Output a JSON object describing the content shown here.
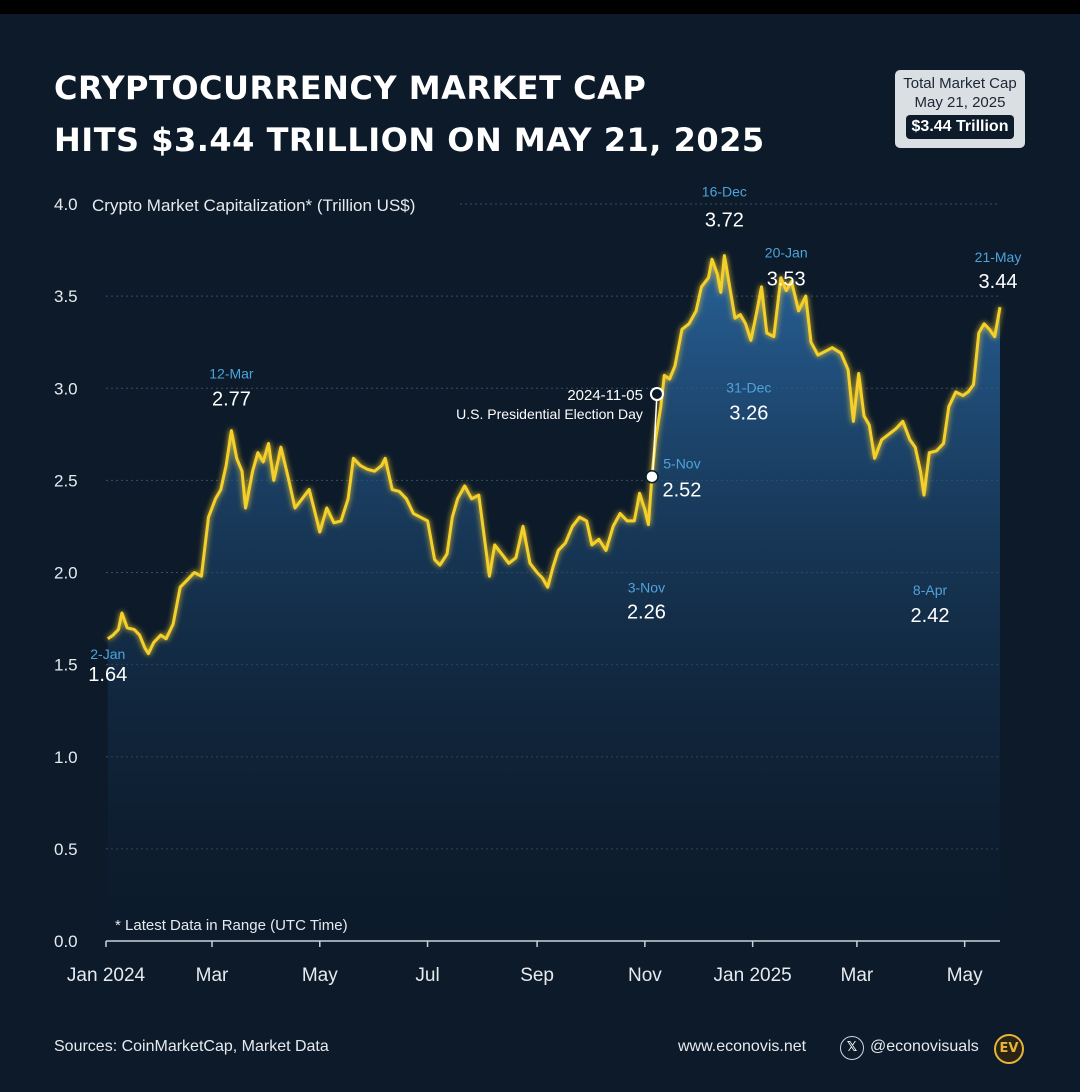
{
  "title": {
    "line1": "CRYPTOCURRENCY MARKET CAP",
    "line2": "HITS $3.44 TRILLION ON MAY 21, 2025"
  },
  "badge": {
    "line1": "Total Market Cap",
    "line2": "May 21, 2025",
    "value": "$3.44 Trillion"
  },
  "footnote": "* Latest Data in Range (UTC Time)",
  "footer": {
    "sources": "Sources: CoinMarketCap, Market Data",
    "website": "www.econovis.net",
    "x_icon": "x-logo-icon",
    "social": "@econovisuals",
    "logo_text": "EV"
  },
  "colors": {
    "background": "#0c1a2a",
    "line": "#f5d02a",
    "date_label": "#4ea3da",
    "grid": "#3a4f63"
  },
  "chart_data": {
    "type": "area",
    "title": "Crypto Market Capitalization* (Trillion US$)",
    "ylabel": "Crypto Market Capitalization* (Trillion US$)",
    "ylim": [
      0,
      4
    ],
    "y_ticks": [
      0.0,
      0.5,
      1.0,
      1.5,
      2.0,
      2.5,
      3.0,
      3.5,
      4.0
    ],
    "y_tick_labels": [
      "0.0",
      "0.5",
      "1.0",
      "1.5",
      "2.0",
      "2.5",
      "3.0",
      "3.5",
      "4.0"
    ],
    "x_ticks": [
      "2024-01-01",
      "2024-03-01",
      "2024-05-01",
      "2024-07-01",
      "2024-09-01",
      "2024-11-01",
      "2025-01-01",
      "2025-03-01",
      "2025-05-01"
    ],
    "x_tick_labels": [
      "Jan 2024",
      "Mar",
      "May",
      "Jul",
      "Sep",
      "Nov",
      "Jan 2025",
      "Mar",
      "May"
    ],
    "xlim": [
      "2024-01-01",
      "2025-05-21"
    ],
    "grid": true,
    "series": [
      {
        "points": [
          [
            "2024-01-02",
            1.64
          ],
          [
            "2024-01-05",
            1.66
          ],
          [
            "2024-01-08",
            1.69
          ],
          [
            "2024-01-10",
            1.78
          ],
          [
            "2024-01-13",
            1.7
          ],
          [
            "2024-01-17",
            1.69
          ],
          [
            "2024-01-20",
            1.66
          ],
          [
            "2024-01-23",
            1.59
          ],
          [
            "2024-01-25",
            1.56
          ],
          [
            "2024-01-28",
            1.62
          ],
          [
            "2024-02-01",
            1.66
          ],
          [
            "2024-02-04",
            1.64
          ],
          [
            "2024-02-08",
            1.72
          ],
          [
            "2024-02-12",
            1.92
          ],
          [
            "2024-02-16",
            1.96
          ],
          [
            "2024-02-20",
            2.0
          ],
          [
            "2024-02-24",
            1.98
          ],
          [
            "2024-02-28",
            2.3
          ],
          [
            "2024-03-03",
            2.4
          ],
          [
            "2024-03-06",
            2.45
          ],
          [
            "2024-03-09",
            2.58
          ],
          [
            "2024-03-12",
            2.77
          ],
          [
            "2024-03-15",
            2.62
          ],
          [
            "2024-03-18",
            2.55
          ],
          [
            "2024-03-20",
            2.35
          ],
          [
            "2024-03-24",
            2.55
          ],
          [
            "2024-03-27",
            2.65
          ],
          [
            "2024-03-30",
            2.6
          ],
          [
            "2024-04-02",
            2.7
          ],
          [
            "2024-04-05",
            2.5
          ],
          [
            "2024-04-09",
            2.68
          ],
          [
            "2024-04-13",
            2.52
          ],
          [
            "2024-04-17",
            2.35
          ],
          [
            "2024-04-21",
            2.4
          ],
          [
            "2024-04-25",
            2.45
          ],
          [
            "2024-04-29",
            2.3
          ],
          [
            "2024-05-01",
            2.22
          ],
          [
            "2024-05-05",
            2.35
          ],
          [
            "2024-05-09",
            2.27
          ],
          [
            "2024-05-13",
            2.28
          ],
          [
            "2024-05-17",
            2.4
          ],
          [
            "2024-05-20",
            2.62
          ],
          [
            "2024-05-24",
            2.58
          ],
          [
            "2024-05-28",
            2.56
          ],
          [
            "2024-06-01",
            2.55
          ],
          [
            "2024-06-05",
            2.58
          ],
          [
            "2024-06-07",
            2.62
          ],
          [
            "2024-06-11",
            2.45
          ],
          [
            "2024-06-15",
            2.44
          ],
          [
            "2024-06-19",
            2.4
          ],
          [
            "2024-06-23",
            2.32
          ],
          [
            "2024-06-27",
            2.3
          ],
          [
            "2024-07-01",
            2.28
          ],
          [
            "2024-07-05",
            2.07
          ],
          [
            "2024-07-08",
            2.04
          ],
          [
            "2024-07-12",
            2.1
          ],
          [
            "2024-07-15",
            2.3
          ],
          [
            "2024-07-18",
            2.4
          ],
          [
            "2024-07-22",
            2.47
          ],
          [
            "2024-07-26",
            2.4
          ],
          [
            "2024-07-30",
            2.42
          ],
          [
            "2024-08-02",
            2.2
          ],
          [
            "2024-08-05",
            1.98
          ],
          [
            "2024-08-08",
            2.15
          ],
          [
            "2024-08-12",
            2.1
          ],
          [
            "2024-08-16",
            2.05
          ],
          [
            "2024-08-20",
            2.08
          ],
          [
            "2024-08-24",
            2.25
          ],
          [
            "2024-08-28",
            2.05
          ],
          [
            "2024-09-01",
            2.0
          ],
          [
            "2024-09-04",
            1.97
          ],
          [
            "2024-09-07",
            1.92
          ],
          [
            "2024-09-10",
            2.03
          ],
          [
            "2024-09-13",
            2.12
          ],
          [
            "2024-09-17",
            2.16
          ],
          [
            "2024-09-21",
            2.25
          ],
          [
            "2024-09-25",
            2.3
          ],
          [
            "2024-09-29",
            2.28
          ],
          [
            "2024-10-02",
            2.15
          ],
          [
            "2024-10-06",
            2.18
          ],
          [
            "2024-10-10",
            2.12
          ],
          [
            "2024-10-14",
            2.25
          ],
          [
            "2024-10-18",
            2.32
          ],
          [
            "2024-10-22",
            2.28
          ],
          [
            "2024-10-26",
            2.28
          ],
          [
            "2024-10-29",
            2.43
          ],
          [
            "2024-11-01",
            2.34
          ],
          [
            "2024-11-03",
            2.26
          ],
          [
            "2024-11-05",
            2.52
          ],
          [
            "2024-11-07",
            2.72
          ],
          [
            "2024-11-10",
            2.9
          ],
          [
            "2024-11-12",
            3.07
          ],
          [
            "2024-11-15",
            3.05
          ],
          [
            "2024-11-18",
            3.12
          ],
          [
            "2024-11-22",
            3.32
          ],
          [
            "2024-11-26",
            3.35
          ],
          [
            "2024-11-30",
            3.42
          ],
          [
            "2024-12-03",
            3.55
          ],
          [
            "2024-12-07",
            3.6
          ],
          [
            "2024-12-09",
            3.7
          ],
          [
            "2024-12-12",
            3.62
          ],
          [
            "2024-12-14",
            3.52
          ],
          [
            "2024-12-16",
            3.72
          ],
          [
            "2024-12-19",
            3.55
          ],
          [
            "2024-12-22",
            3.38
          ],
          [
            "2024-12-25",
            3.4
          ],
          [
            "2024-12-28",
            3.35
          ],
          [
            "2024-12-31",
            3.26
          ],
          [
            "2025-01-03",
            3.4
          ],
          [
            "2025-01-06",
            3.55
          ],
          [
            "2025-01-09",
            3.3
          ],
          [
            "2025-01-13",
            3.28
          ],
          [
            "2025-01-17",
            3.6
          ],
          [
            "2025-01-20",
            3.53
          ],
          [
            "2025-01-23",
            3.58
          ],
          [
            "2025-01-27",
            3.42
          ],
          [
            "2025-01-31",
            3.5
          ],
          [
            "2025-02-03",
            3.25
          ],
          [
            "2025-02-07",
            3.18
          ],
          [
            "2025-02-11",
            3.2
          ],
          [
            "2025-02-15",
            3.22
          ],
          [
            "2025-02-20",
            3.19
          ],
          [
            "2025-02-24",
            3.1
          ],
          [
            "2025-02-27",
            2.82
          ],
          [
            "2025-03-02",
            3.08
          ],
          [
            "2025-03-05",
            2.85
          ],
          [
            "2025-03-08",
            2.8
          ],
          [
            "2025-03-11",
            2.62
          ],
          [
            "2025-03-15",
            2.72
          ],
          [
            "2025-03-19",
            2.75
          ],
          [
            "2025-03-23",
            2.78
          ],
          [
            "2025-03-27",
            2.82
          ],
          [
            "2025-03-31",
            2.72
          ],
          [
            "2025-04-03",
            2.68
          ],
          [
            "2025-04-06",
            2.55
          ],
          [
            "2025-04-08",
            2.42
          ],
          [
            "2025-04-11",
            2.65
          ],
          [
            "2025-04-15",
            2.66
          ],
          [
            "2025-04-19",
            2.7
          ],
          [
            "2025-04-22",
            2.9
          ],
          [
            "2025-04-26",
            2.98
          ],
          [
            "2025-04-30",
            2.96
          ],
          [
            "2025-05-03",
            2.98
          ],
          [
            "2025-05-06",
            3.02
          ],
          [
            "2025-05-09",
            3.3
          ],
          [
            "2025-05-12",
            3.35
          ],
          [
            "2025-05-15",
            3.32
          ],
          [
            "2025-05-18",
            3.28
          ],
          [
            "2025-05-21",
            3.44
          ]
        ]
      }
    ],
    "annotations": [
      {
        "date": "2024-01-02",
        "date_label": "2-Jan",
        "value_label": "1.64"
      },
      {
        "date": "2024-03-12",
        "date_label": "12-Mar",
        "value_label": "2.77"
      },
      {
        "date": "2024-11-03",
        "date_label": "3-Nov",
        "value_label": "2.26"
      },
      {
        "date": "2024-11-05",
        "date_label": "5-Nov",
        "value_label": "2.52"
      },
      {
        "date": "2024-12-16",
        "date_label": "16-Dec",
        "value_label": "3.72"
      },
      {
        "date": "2024-12-31",
        "date_label": "31-Dec",
        "value_label": "3.26"
      },
      {
        "date": "2025-01-20",
        "date_label": "20-Jan",
        "value_label": "3.53"
      },
      {
        "date": "2025-04-08",
        "date_label": "8-Apr",
        "value_label": "2.42"
      },
      {
        "date": "2025-05-21",
        "date_label": "21-May",
        "value_label": "3.44"
      }
    ],
    "event": {
      "date": "2024-11-05",
      "label": "2024-11-05",
      "description": "U.S. Presidential Election Day"
    }
  }
}
